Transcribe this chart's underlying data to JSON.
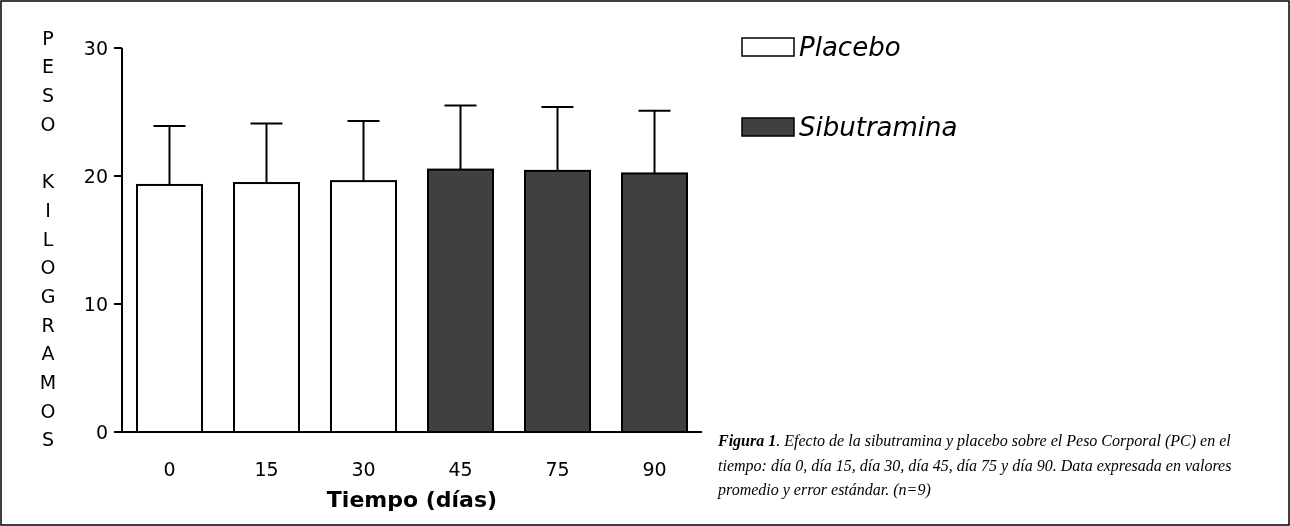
{
  "chart_data": {
    "type": "bar",
    "xlabel": "Tiempo (días)",
    "ylabel": "PESO KILOGRAMOS",
    "categories": [
      "0",
      "15",
      "30",
      "45",
      "75",
      "90"
    ],
    "series": [
      {
        "name": "Placebo",
        "color": "#ffffff",
        "values": [
          19.3,
          19.45,
          19.6,
          null,
          null,
          null
        ],
        "errors": [
          [
            19.3,
            23.9
          ],
          [
            19.45,
            24.1
          ],
          [
            19.6,
            24.3
          ],
          null,
          null,
          null
        ]
      },
      {
        "name": "Sibutramina",
        "color": "#404040",
        "values": [
          null,
          null,
          null,
          20.5,
          20.4,
          20.2
        ],
        "errors": [
          null,
          null,
          null,
          [
            20.5,
            25.5
          ],
          [
            20.4,
            25.4
          ],
          [
            20.2,
            25.1
          ]
        ]
      }
    ],
    "ylim": [
      0,
      30
    ],
    "yticks": [
      0,
      10,
      20,
      30
    ],
    "grid": false,
    "legend": "top right",
    "annotations": [
      "Figura 1. Efecto de la sibutramina y placebo sobre el Peso Corporal (PC) en el tiempo: día 0, día 15, día 30, día 45, día 75 y día 90. Data expresada en valores promedio y error estándar. (n=9)"
    ]
  }
}
